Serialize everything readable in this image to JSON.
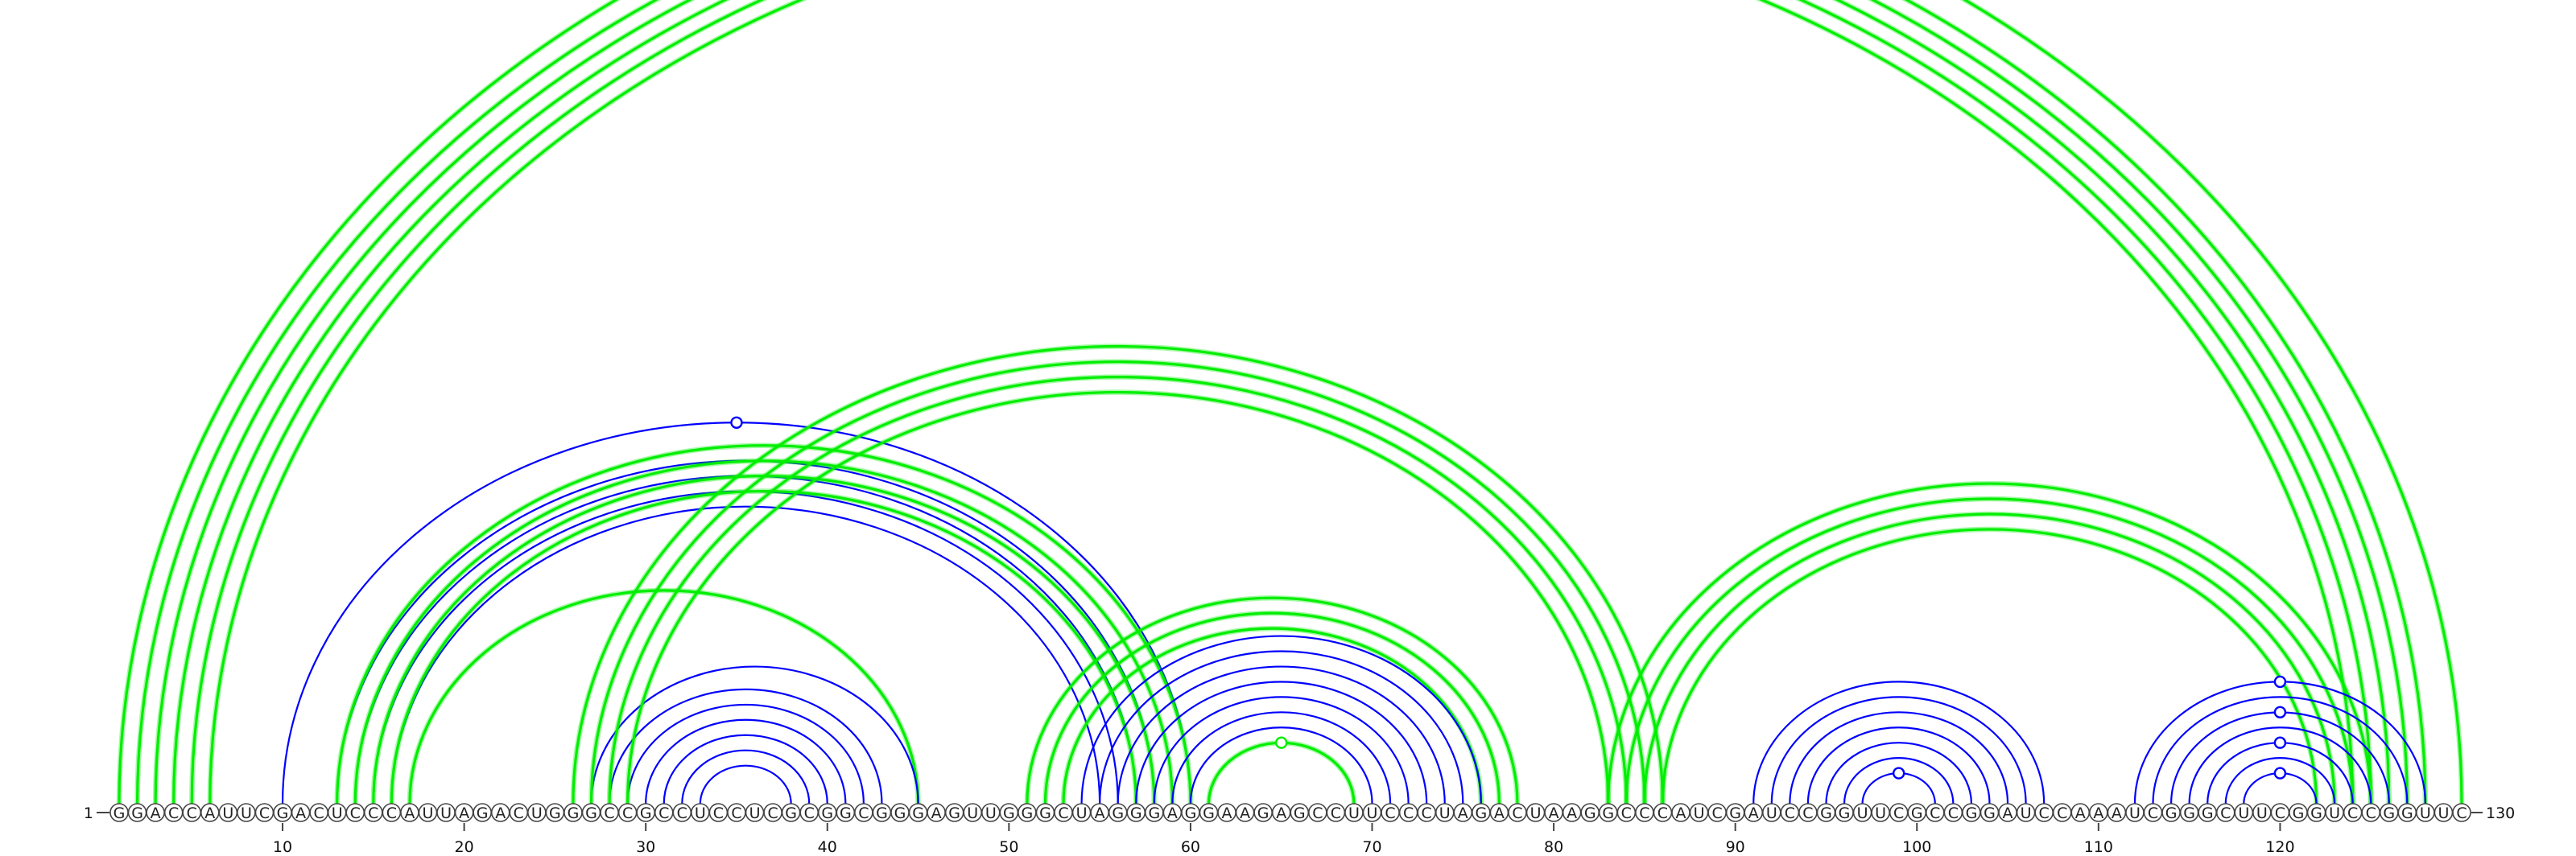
{
  "sequence": "GGACCAUUCGACUCCCAUUAGACUGGGCCGCCUCCUCGCGGCGGGAGUUGGGCUAGGGAGGAAGAGCCUUCCCUAGACUAAGGCCCAUCGAUCCGGUUCGCCGGAUCCAAAUCGGGCUUCGGUCCGGUUC",
  "start_label": "1",
  "end_label": "130",
  "ticks": [
    10,
    20,
    30,
    40,
    50,
    60,
    70,
    80,
    90,
    100,
    110,
    120
  ],
  "colors": {
    "structure_a": "#0000ff",
    "structure_b": "#00ee00"
  },
  "arc_groups": [
    {
      "color": "structure_b",
      "arcs": [
        [
          1,
          130
        ],
        [
          2,
          128
        ],
        [
          3,
          127
        ],
        [
          4,
          126
        ],
        [
          5,
          125
        ],
        [
          6,
          124
        ]
      ],
      "marker_on": 1
    },
    {
      "color": "structure_a",
      "arcs": [
        [
          10,
          60
        ],
        [
          13,
          58
        ],
        [
          14,
          57
        ],
        [
          15,
          56
        ],
        [
          16,
          55
        ]
      ],
      "marker_on": 0
    },
    {
      "color": "structure_b",
      "arcs": [
        [
          13,
          60
        ],
        [
          14,
          59
        ],
        [
          15,
          58
        ],
        [
          16,
          57
        ],
        [
          17,
          45
        ]
      ],
      "marker_on": -1
    },
    {
      "color": "structure_a",
      "arcs": [
        [
          27,
          45
        ],
        [
          28,
          43
        ],
        [
          29,
          42
        ],
        [
          30,
          41
        ],
        [
          31,
          40
        ],
        [
          32,
          39
        ],
        [
          33,
          38
        ]
      ],
      "marker_on": -1
    },
    {
      "color": "structure_b",
      "arcs": [
        [
          26,
          86
        ],
        [
          27,
          85
        ],
        [
          28,
          84
        ],
        [
          29,
          83
        ]
      ],
      "marker_on": -1
    },
    {
      "color": "structure_b",
      "arcs": [
        [
          51,
          78
        ],
        [
          52,
          77
        ],
        [
          53,
          76
        ]
      ],
      "marker_on": -1
    },
    {
      "color": "structure_a",
      "arcs": [
        [
          54,
          76
        ],
        [
          55,
          75
        ],
        [
          56,
          74
        ],
        [
          57,
          73
        ],
        [
          58,
          72
        ],
        [
          59,
          71
        ],
        [
          60,
          70
        ]
      ],
      "marker_on": -1
    },
    {
      "color": "structure_b",
      "arcs": [
        [
          61,
          69
        ]
      ],
      "marker_on": 0
    },
    {
      "color": "structure_b",
      "arcs": [
        [
          83,
          125
        ],
        [
          84,
          124
        ],
        [
          85,
          123
        ],
        [
          86,
          122
        ]
      ],
      "marker_on": -1
    },
    {
      "color": "structure_a",
      "arcs": [
        [
          91,
          107
        ],
        [
          92,
          106
        ],
        [
          93,
          105
        ],
        [
          94,
          104
        ],
        [
          95,
          103
        ],
        [
          96,
          102
        ],
        [
          97,
          101
        ]
      ],
      "marker_on": 6
    },
    {
      "color": "structure_a",
      "arcs": [
        [
          112,
          128
        ],
        [
          113,
          127
        ],
        [
          114,
          126
        ],
        [
          115,
          125
        ],
        [
          116,
          124
        ],
        [
          117,
          123
        ],
        [
          118,
          122
        ]
      ],
      "marker_on": [
        0,
        2,
        4,
        6
      ]
    }
  ]
}
